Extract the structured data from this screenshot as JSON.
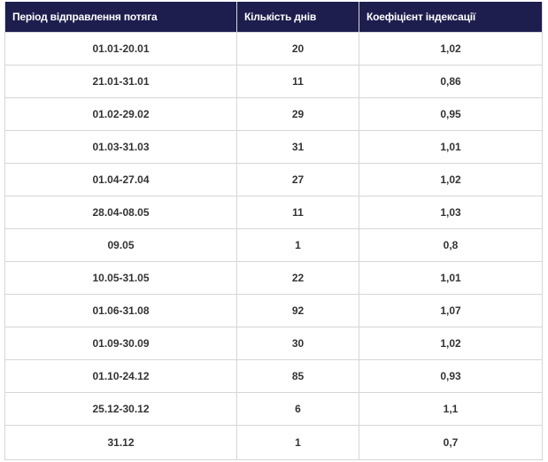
{
  "table": {
    "headers": [
      "Період відправлення потяга",
      "Кількість днів",
      "Коефіцієнт індексації"
    ],
    "rows": [
      [
        "01.01-20.01",
        "20",
        "1,02"
      ],
      [
        "21.01-31.01",
        "11",
        "0,86"
      ],
      [
        "01.02-29.02",
        "29",
        "0,95"
      ],
      [
        "01.03-31.03",
        "31",
        "1,01"
      ],
      [
        "01.04-27.04",
        "27",
        "1,02"
      ],
      [
        "28.04-08.05",
        "11",
        "1,03"
      ],
      [
        "09.05",
        "1",
        "0,8"
      ],
      [
        "10.05-31.05",
        "22",
        "1,01"
      ],
      [
        "01.06-31.08",
        "92",
        "1,07"
      ],
      [
        "01.09-30.09",
        "30",
        "1,02"
      ],
      [
        "01.10-24.12",
        "85",
        "0,93"
      ],
      [
        "25.12-30.12",
        "6",
        "1,1"
      ],
      [
        "31.12",
        "1",
        "0,7"
      ]
    ]
  },
  "colors": {
    "header_bg": "#1d1e4e",
    "header_text": "#ffffff",
    "cell_text": "#333333",
    "border": "#d6d6d6"
  }
}
